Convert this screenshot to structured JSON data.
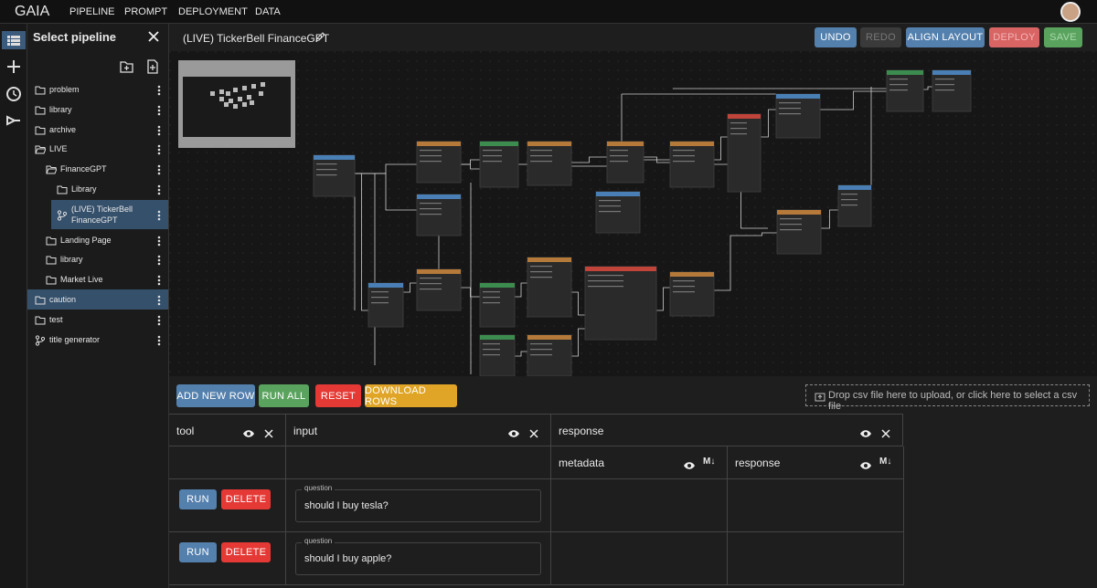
{
  "nav": {
    "brand": "GAIA",
    "items": [
      "PIPELINE",
      "PROMPT",
      "DEPLOYMENT",
      "DATA"
    ]
  },
  "sidebar": {
    "title": "Select pipeline",
    "tree": [
      {
        "label": "problem",
        "level": 0,
        "kind": "folder"
      },
      {
        "label": "library",
        "level": 0,
        "kind": "folder"
      },
      {
        "label": "archive",
        "level": 0,
        "kind": "folder"
      },
      {
        "label": "LIVE",
        "level": 0,
        "kind": "open"
      },
      {
        "label": "FinanceGPT",
        "level": 1,
        "kind": "open"
      },
      {
        "label": "Library",
        "level": 2,
        "kind": "folder"
      },
      {
        "label": "(LIVE) TickerBell FinanceGPT",
        "level": 2,
        "kind": "pipeline",
        "selected": true
      },
      {
        "label": "Landing Page",
        "level": 1,
        "kind": "folder"
      },
      {
        "label": "library",
        "level": 1,
        "kind": "folder"
      },
      {
        "label": "Market Live",
        "level": 1,
        "kind": "folder"
      },
      {
        "label": "caution",
        "level": 0,
        "kind": "folder",
        "selected": true
      },
      {
        "label": "test",
        "level": 0,
        "kind": "folder"
      },
      {
        "label": "title generator",
        "level": 0,
        "kind": "pipeline"
      }
    ]
  },
  "editor": {
    "title": "(LIVE) TickerBell FinanceGPT",
    "buttons": [
      "UNDO",
      "REDO",
      "ALIGN LAYOUT",
      "DEPLOY",
      "SAVE"
    ]
  },
  "toolbar": {
    "buttons": [
      "ADD NEW ROW",
      "RUN ALL",
      "RESET",
      "DOWNLOAD ROWS"
    ],
    "dropzone": "Drop csv file here to upload, or click here to select a csv file"
  },
  "table": {
    "columns": [
      "tool",
      "input",
      "response"
    ],
    "subcolumns": [
      "metadata",
      "response"
    ],
    "subcolumn_icon": "M↓",
    "rows": [
      {
        "actions": [
          "RUN",
          "DELETE"
        ],
        "field_label": "question",
        "input": "should I buy tesla?"
      },
      {
        "actions": [
          "RUN",
          "DELETE"
        ],
        "field_label": "question",
        "input": "should I buy apple?"
      }
    ]
  }
}
